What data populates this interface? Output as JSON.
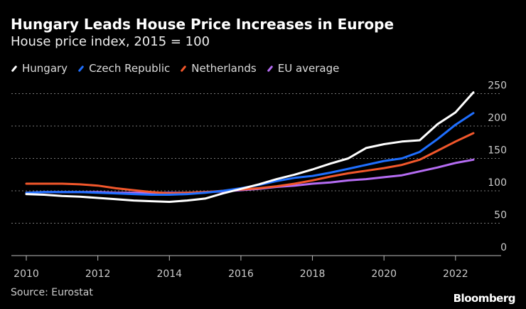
{
  "chart_data": {
    "type": "line",
    "title": "Hungary Leads House Price Increases in Europe",
    "subtitle": "House price index, 2015 = 100",
    "xlabel": "",
    "ylabel": "",
    "xlim": [
      2010,
      2022.5
    ],
    "ylim": [
      0,
      250
    ],
    "x_ticks": [
      "2010",
      "2012",
      "2014",
      "2016",
      "2018",
      "2020",
      "2022"
    ],
    "y_ticks": [
      "0",
      "50",
      "100",
      "150",
      "200",
      "250"
    ],
    "y_axis_side": "right",
    "grid": "horizontal dotted",
    "legend_placement": "top-left",
    "x": [
      2010,
      2010.5,
      2011,
      2011.5,
      2012,
      2012.5,
      2013,
      2013.5,
      2014,
      2014.5,
      2015,
      2015.5,
      2016,
      2016.5,
      2017,
      2017.5,
      2018,
      2018.5,
      2019,
      2019.5,
      2020,
      2020.5,
      2021,
      2021.5,
      2022,
      2022.5
    ],
    "series": [
      {
        "name": "Hungary",
        "color": "#ffffff",
        "values": [
          95,
          94,
          92,
          91,
          89,
          87,
          85,
          84,
          83,
          85,
          88,
          96,
          103,
          110,
          118,
          125,
          133,
          142,
          150,
          166,
          172,
          176,
          178,
          203,
          221,
          252
        ]
      },
      {
        "name": "Czech Republic",
        "color": "#1f6fff",
        "values": [
          97,
          98,
          98,
          98,
          97,
          96,
          95,
          94,
          94,
          95,
          97,
          100,
          104,
          109,
          115,
          120,
          123,
          128,
          134,
          140,
          146,
          150,
          160,
          180,
          202,
          220
        ]
      },
      {
        "name": "Netherlands",
        "color": "#f2572b",
        "values": [
          111,
          111,
          111,
          110,
          108,
          104,
          101,
          98,
          96,
          97,
          98,
          100,
          102,
          104,
          107,
          111,
          116,
          122,
          127,
          131,
          135,
          140,
          148,
          162,
          176,
          189
        ]
      },
      {
        "name": "EU average",
        "color": "#b56cf3",
        "values": [
          97,
          98,
          98,
          98,
          98,
          97,
          97,
          97,
          97,
          97,
          98,
          99,
          101,
          103,
          106,
          108,
          111,
          113,
          116,
          118,
          121,
          124,
          130,
          136,
          143,
          148
        ]
      }
    ]
  },
  "source": "Source: Eurostat",
  "logo": "Bloomberg"
}
